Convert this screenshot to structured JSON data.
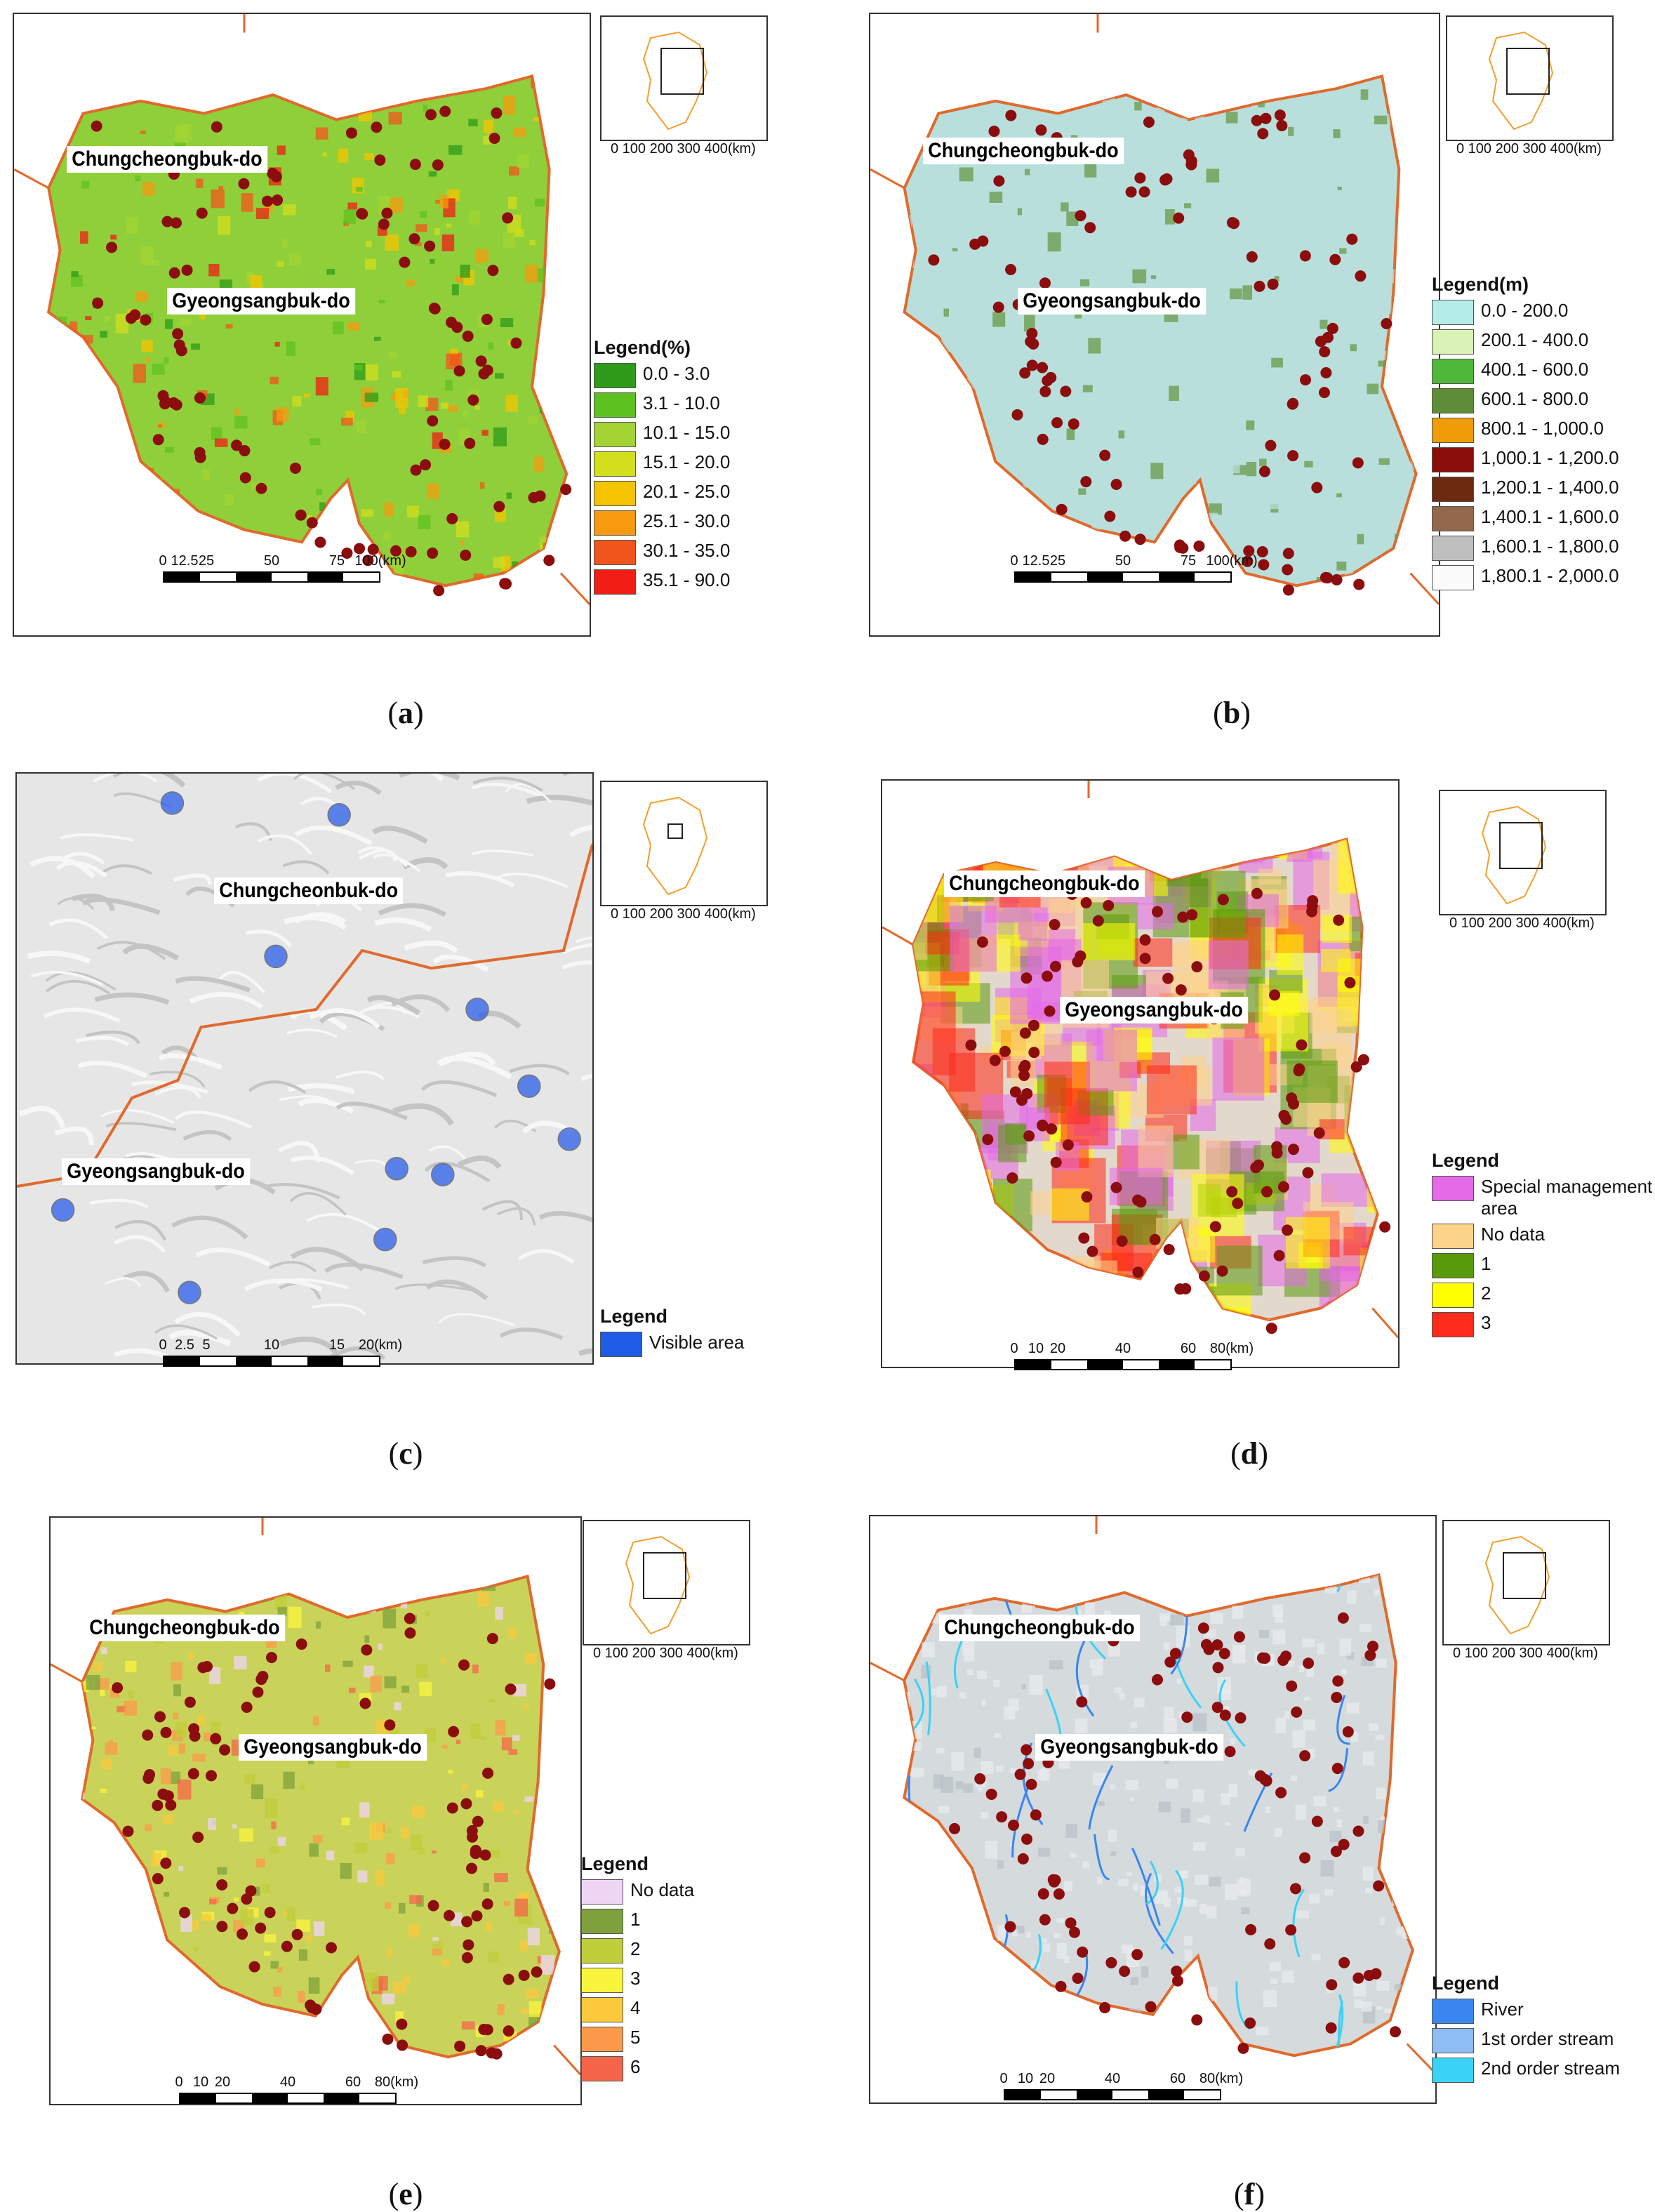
{
  "figure": {
    "panels": [
      {
        "id": "a",
        "caption_letter": "a",
        "labels": {
          "north": "Chungcheongbuk-do",
          "south": "Gyeongsangbuk-do"
        },
        "map_fill": "#8fcf3a",
        "map_accent": "#e0601c",
        "scale": {
          "ticks": [
            "0",
            "12.5",
            "25",
            "50",
            "75",
            "100(km)"
          ]
        },
        "legend": {
          "title": "Legend(%)",
          "items": [
            {
              "label": "0.0 - 3.0",
              "color": "#2e9b1a"
            },
            {
              "label": "3.1 - 10.0",
              "color": "#5dc21f"
            },
            {
              "label": "10.1 - 15.0",
              "color": "#a3d433"
            },
            {
              "label": "15.1 - 20.0",
              "color": "#d3de1c"
            },
            {
              "label": "20.1 - 25.0",
              "color": "#f5c400"
            },
            {
              "label": "25.1 - 30.0",
              "color": "#f79a10"
            },
            {
              "label": "30.1 - 35.0",
              "color": "#f2551c"
            },
            {
              "label": "35.1 - 90.0",
              "color": "#f01e14"
            }
          ]
        },
        "inset_scale": "0 100 200 300 400(km)"
      },
      {
        "id": "b",
        "caption_letter": "b",
        "labels": {
          "north": "Chungcheongbuk-do",
          "south": "Gyeongsangbuk-do"
        },
        "map_fill": "#b9dfdc",
        "map_accent": "#6a9a4a",
        "scale": {
          "ticks": [
            "0",
            "12.5",
            "25",
            "50",
            "75",
            "100(km)"
          ]
        },
        "legend": {
          "title": "Legend(m)",
          "items": [
            {
              "label": "0.0 - 200.0",
              "color": "#b3ece8"
            },
            {
              "label": "200.1 - 400.0",
              "color": "#d9f2b6"
            },
            {
              "label": "400.1 - 600.0",
              "color": "#4fb739"
            },
            {
              "label": "600.1 - 800.0",
              "color": "#5f8c37"
            },
            {
              "label": "800.1 - 1,000.0",
              "color": "#ef9c08"
            },
            {
              "label": "1,000.1 - 1,200.0",
              "color": "#8b0e0b"
            },
            {
              "label": "1,200.1 - 1,400.0",
              "color": "#6e2a10"
            },
            {
              "label": "1,400.1 - 1,600.0",
              "color": "#93684d"
            },
            {
              "label": "1,600.1 - 1,800.0",
              "color": "#c0bfbf"
            },
            {
              "label": "1,800.1 - 2,000.0",
              "color": "#fbfbfb"
            }
          ]
        },
        "inset_scale": "0 100 200 300 400(km)"
      },
      {
        "id": "c",
        "caption_letter": "c",
        "labels": {
          "north": "Chungcheonbuk-do",
          "south": "Gyeongsangbuk-do"
        },
        "map_fill": "#e6e6e6",
        "map_accent": "#2a5ee8",
        "scale": {
          "ticks": [
            "0",
            "2.5",
            "5",
            "10",
            "15",
            "20(km)"
          ]
        },
        "legend": {
          "title": "Legend",
          "items": [
            {
              "label": "Visible area",
              "color": "#1e5ce6"
            }
          ]
        },
        "inset_scale": "0 100 200 300 400(km)"
      },
      {
        "id": "d",
        "caption_letter": "d",
        "labels": {
          "north": "Chungcheongbuk-do",
          "south": "Gyeongsangbuk-do"
        },
        "map_fill": "#e3d8cc",
        "map_accent": "#f0ec1a",
        "scale": {
          "ticks": [
            "0",
            "10",
            "20",
            "40",
            "60",
            "80(km)"
          ]
        },
        "legend": {
          "title": "Legend",
          "items": [
            {
              "label": "Special management area",
              "color": "#e46ae8"
            },
            {
              "label": "No data",
              "color": "#fdd38a"
            },
            {
              "label": "1",
              "color": "#5a9b0c"
            },
            {
              "label": "2",
              "color": "#ffff00"
            },
            {
              "label": "3",
              "color": "#ff2a1a"
            }
          ]
        },
        "inset_scale": "0 100 200 300 400(km)"
      },
      {
        "id": "e",
        "caption_letter": "e",
        "labels": {
          "north": "Chungcheongbuk-do",
          "south": "Gyeongsangbuk-do"
        },
        "map_fill": "#c9d35a",
        "map_accent": "#f4d41c",
        "scale": {
          "ticks": [
            "0",
            "10",
            "20",
            "40",
            "60",
            "80(km)"
          ]
        },
        "legend": {
          "title": "Legend",
          "items": [
            {
              "label": "No data",
              "color": "#efd6f5"
            },
            {
              "label": "1",
              "color": "#7ea13c"
            },
            {
              "label": "2",
              "color": "#c0ce3a"
            },
            {
              "label": "3",
              "color": "#fbf43c"
            },
            {
              "label": "4",
              "color": "#fbc83c"
            },
            {
              "label": "5",
              "color": "#fb9a4a"
            },
            {
              "label": "6",
              "color": "#f5654a"
            }
          ]
        },
        "inset_scale": "0 100 200 300 400(km)"
      },
      {
        "id": "f",
        "caption_letter": "f",
        "labels": {
          "north": "Chungcheongbuk-do",
          "south": "Gyeongsangbuk-do"
        },
        "map_fill": "#d5dadd",
        "map_accent": "#3a86e8",
        "scale": {
          "ticks": [
            "0",
            "10",
            "20",
            "40",
            "60",
            "80(km)"
          ]
        },
        "legend": {
          "title": "Legend",
          "items": [
            {
              "label": "River",
              "color": "#3a86f0"
            },
            {
              "label": "1st order stream",
              "color": "#8ebcf5"
            },
            {
              "label": "2nd order stream",
              "color": "#3ad2f5"
            }
          ]
        },
        "inset_scale": "0 100 200 300 400(km)"
      }
    ]
  }
}
